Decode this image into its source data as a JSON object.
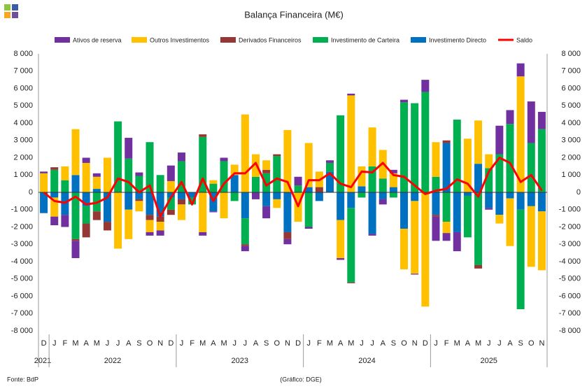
{
  "chart_data": {
    "type": "bar",
    "stacked": true,
    "title": "Balança Financeira (M€)",
    "source": "Fonte: BdP",
    "credit": "(Gráfico: DGE)",
    "categories": [
      "D",
      "J",
      "F",
      "M",
      "A",
      "M",
      "J",
      "J",
      "A",
      "S",
      "O",
      "N",
      "D",
      "J",
      "F",
      "M",
      "A",
      "M",
      "J",
      "J",
      "A",
      "S",
      "O",
      "N",
      "D",
      "J",
      "F",
      "M",
      "A",
      "M",
      "J",
      "J",
      "A",
      "S",
      "O",
      "N",
      "D",
      "J",
      "F",
      "M",
      "A",
      "M",
      "J",
      "J",
      "A",
      "S",
      "O",
      "N"
    ],
    "year_groups": [
      {
        "label": "2021",
        "count": 1
      },
      {
        "label": "2022",
        "count": 12
      },
      {
        "label": "2023",
        "count": 12
      },
      {
        "label": "2024",
        "count": 12
      },
      {
        "label": "2025",
        "count": 11
      }
    ],
    "series": [
      {
        "name": "Ativos de reserva",
        "color": "#7030a0",
        "values": [
          100,
          -500,
          -700,
          -1000,
          300,
          200,
          0,
          0,
          1200,
          200,
          -200,
          -300,
          900,
          500,
          0,
          -200,
          -50,
          200,
          0,
          -300,
          -400,
          -700,
          0,
          -300,
          500,
          -100,
          0,
          150,
          -100,
          100,
          0,
          -100,
          -300,
          200,
          150,
          -50,
          700,
          -1400,
          -450,
          -1100,
          0,
          0,
          -100,
          1650,
          800,
          750,
          2400,
          1000
        ]
      },
      {
        "name": "Outros Investimentos",
        "color": "#ffc000",
        "values": [
          1100,
          -1100,
          800,
          2650,
          1700,
          700,
          2000,
          -3250,
          -1700,
          -600,
          -700,
          -500,
          650,
          -900,
          0,
          -2300,
          200,
          -1500,
          600,
          4500,
          1300,
          550,
          -500,
          3600,
          -1700,
          2550,
          900,
          0,
          -2200,
          5600,
          1150,
          2250,
          1650,
          800,
          -2350,
          -4200,
          -6600,
          2000,
          -650,
          0,
          3100,
          2500,
          800,
          -500,
          -2750,
          6700,
          -3500,
          -3400
        ]
      },
      {
        "name": "Derivados Financeiros",
        "color": "#953735",
        "values": [
          0,
          150,
          0,
          -100,
          -800,
          -500,
          -500,
          0,
          0,
          -100,
          -300,
          -300,
          -300,
          -300,
          0,
          150,
          0,
          0,
          0,
          -100,
          0,
          200,
          100,
          -400,
          0,
          0,
          300,
          0,
          0,
          -50,
          0,
          0,
          0,
          0,
          0,
          0,
          0,
          -100,
          150,
          0,
          0,
          -200,
          0,
          0,
          0,
          0,
          0,
          0
        ]
      },
      {
        "name": "Investimento de Carteira",
        "color": "#00b050",
        "values": [
          0,
          1300,
          700,
          -2700,
          -1000,
          -1100,
          0,
          4100,
          1950,
          950,
          2900,
          1000,
          -700,
          1800,
          -400,
          3200,
          500,
          1800,
          -500,
          -1500,
          900,
          1100,
          2100,
          0,
          400,
          -2000,
          0,
          500,
          4450,
          -4300,
          -300,
          1500,
          800,
          -300,
          5200,
          5150,
          5800,
          900,
          -1700,
          4200,
          -2400,
          -4200,
          1400,
          2200,
          3950,
          -5750,
          2850,
          3650
        ]
      },
      {
        "name": "Investimento Directo",
        "color": "#0070c0",
        "values": [
          -1200,
          -300,
          -1300,
          1000,
          -800,
          200,
          -1700,
          0,
          -1000,
          -400,
          -1300,
          -1400,
          -300,
          -400,
          -300,
          0,
          -1100,
          0,
          1000,
          -1500,
          0,
          -800,
          -400,
          -2300,
          0,
          300,
          -500,
          1200,
          -1600,
          -900,
          350,
          -2400,
          -400,
          300,
          -2100,
          -500,
          0,
          -1300,
          2850,
          -2300,
          -200,
          1650,
          -900,
          -1300,
          -350,
          -1000,
          -800,
          -1100
        ]
      },
      {
        "name": "Saldo",
        "type": "line",
        "color": "#ff0000",
        "values": [
          0,
          -500,
          -600,
          -250,
          -700,
          -600,
          -300,
          800,
          600,
          0,
          400,
          -1400,
          -300,
          600,
          -700,
          800,
          -500,
          500,
          1100,
          1100,
          1700,
          400,
          800,
          600,
          -800,
          700,
          700,
          1100,
          500,
          300,
          1200,
          1150,
          1700,
          1000,
          900,
          400,
          -100,
          100,
          200,
          750,
          500,
          -250,
          1200,
          2000,
          1700,
          600,
          1000,
          100
        ]
      }
    ],
    "ylim": [
      -8000,
      8000
    ],
    "yticks": [
      {
        "value": -8000,
        "label": "-8 000"
      },
      {
        "value": -7000,
        "label": "-7 000"
      },
      {
        "value": -6000,
        "label": "-6 000"
      },
      {
        "value": -5000,
        "label": "-5 000"
      },
      {
        "value": -4000,
        "label": "-4 000"
      },
      {
        "value": -3000,
        "label": "-3 000"
      },
      {
        "value": -2000,
        "label": "-2 000"
      },
      {
        "value": -1000,
        "label": "-1 000"
      },
      0,
      {
        "value": 1000,
        "label": "1 000"
      },
      {
        "value": 2000,
        "label": "2 000"
      },
      {
        "value": 3000,
        "label": "3 000"
      },
      {
        "value": 4000,
        "label": "4 000"
      },
      {
        "value": 5000,
        "label": "5 000"
      },
      {
        "value": 6000,
        "label": "6 000"
      },
      {
        "value": 7000,
        "label": "7 000"
      },
      {
        "value": 8000,
        "label": "8 000"
      }
    ],
    "y2lim": [
      -8000,
      8000
    ],
    "y2ticks": [
      {
        "value": -8000,
        "label": "-8 000"
      },
      {
        "value": -7000,
        "label": "-7 000"
      },
      {
        "value": -6000,
        "label": "-6 000"
      },
      {
        "value": -5000,
        "label": "-5 000"
      },
      {
        "value": -4000,
        "label": "-4 000"
      },
      {
        "value": -3000,
        "label": "-3 000"
      },
      {
        "value": -2000,
        "label": "-2 000"
      },
      {
        "value": -1000,
        "label": "-1 000"
      },
      0,
      {
        "value": 1000,
        "label": "1 000"
      },
      {
        "value": 2000,
        "label": "2 000"
      },
      {
        "value": 3000,
        "label": "3 000"
      },
      {
        "value": 4000,
        "label": "4 000"
      },
      {
        "value": 5000,
        "label": "5 000"
      },
      {
        "value": 6000,
        "label": "6 000"
      },
      {
        "value": 7000,
        "label": "7 000"
      },
      {
        "value": 8000,
        "label": "8 000"
      }
    ]
  }
}
